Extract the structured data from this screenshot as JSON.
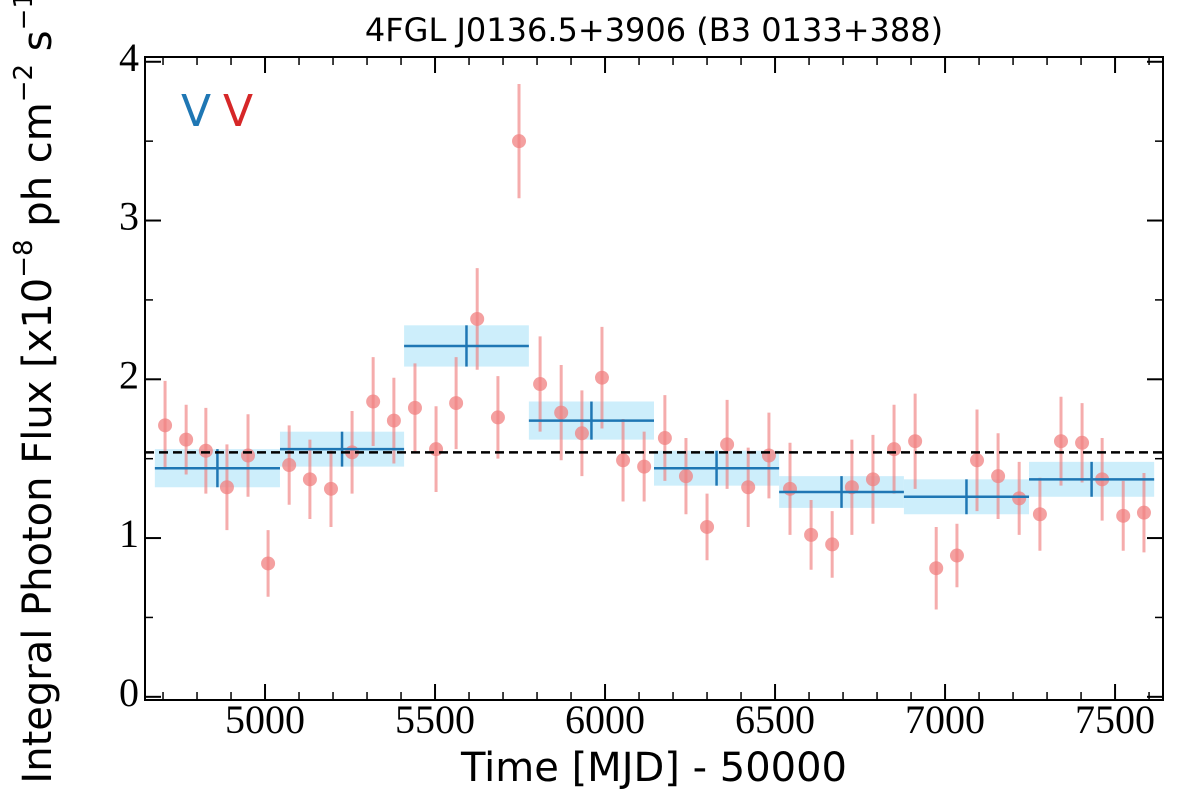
{
  "chart_data": {
    "type": "lightcurve",
    "title": "4FGL J0136.5+3906 (B3 0133+388)",
    "xlabel": "Time [MJD] - 50000",
    "ylabel": [
      "Integral Photon Flux [x10",
      "−8",
      " ph cm",
      "−2",
      " s",
      "−1",
      "]"
    ],
    "xlim": [
      4647,
      7641
    ],
    "ylim": [
      -0.02,
      4.03
    ],
    "xticks": [
      5000,
      5500,
      6000,
      6500,
      7000,
      7500
    ],
    "yticks": [
      0,
      1,
      2,
      3,
      4
    ],
    "xminorticks": [
      4700,
      4800,
      4900,
      5100,
      5200,
      5300,
      5400,
      5600,
      5700,
      5800,
      5900,
      6100,
      6200,
      6300,
      6400,
      6600,
      6700,
      6800,
      6900,
      7100,
      7200,
      7300,
      7400,
      7600
    ],
    "yminorticks": [
      0.5,
      1.5,
      2.5,
      3.5
    ],
    "points": {
      "color": "#f08080",
      "x": [
        4706,
        4768,
        4826,
        4888,
        4950,
        5009,
        5071,
        5132,
        5194,
        5256,
        5318,
        5379,
        5441,
        5503,
        5562,
        5624,
        5685,
        5747,
        5809,
        5871,
        5932,
        5991,
        6053,
        6115,
        6176,
        6238,
        6300,
        6359,
        6421,
        6482,
        6544,
        6606,
        6668,
        6726,
        6788,
        6850,
        6912,
        6974,
        7035,
        7094,
        7156,
        7218,
        7279,
        7341,
        7403,
        7462,
        7524,
        7585
      ],
      "values": [
        1.71,
        1.62,
        1.55,
        1.32,
        1.52,
        0.84,
        1.46,
        1.37,
        1.31,
        1.54,
        1.86,
        1.74,
        1.82,
        1.56,
        1.85,
        2.38,
        1.76,
        3.5,
        1.97,
        1.79,
        1.66,
        2.01,
        1.49,
        1.45,
        1.63,
        1.39,
        1.07,
        1.59,
        1.32,
        1.52,
        1.31,
        1.02,
        0.96,
        1.32,
        1.37,
        1.56,
        1.61,
        0.81,
        0.89,
        1.49,
        1.39,
        1.25,
        1.15,
        1.61,
        1.6,
        1.37,
        1.14,
        1.16
      ],
      "errors": [
        0.28,
        0.22,
        0.27,
        0.27,
        0.26,
        0.21,
        0.25,
        0.25,
        0.24,
        0.26,
        0.28,
        0.27,
        0.28,
        0.27,
        0.29,
        0.32,
        0.26,
        0.36,
        0.3,
        0.3,
        0.27,
        0.32,
        0.26,
        0.22,
        0.27,
        0.24,
        0.21,
        0.28,
        0.25,
        0.27,
        0.29,
        0.22,
        0.21,
        0.3,
        0.28,
        0.28,
        0.3,
        0.26,
        0.2,
        0.32,
        0.27,
        0.23,
        0.23,
        0.28,
        0.25,
        0.26,
        0.22,
        0.25
      ]
    },
    "binned": {
      "color": "#1f77b4",
      "fill": "#cdeefb",
      "x_start": [
        4676,
        5044,
        5409,
        5776,
        6144,
        6512,
        6879,
        7247
      ],
      "x_end": [
        5044,
        5409,
        5776,
        6144,
        6512,
        6879,
        7247,
        7615
      ],
      "values": [
        1.44,
        1.56,
        2.21,
        1.74,
        1.44,
        1.29,
        1.26,
        1.37
      ],
      "errors": [
        0.12,
        0.11,
        0.13,
        0.12,
        0.11,
        0.1,
        0.11,
        0.11
      ]
    },
    "reference": 1.54,
    "annotations": [
      {
        "text": "V",
        "color": "#1f77b4"
      },
      {
        "text": "V",
        "color": "#d62728"
      }
    ]
  }
}
